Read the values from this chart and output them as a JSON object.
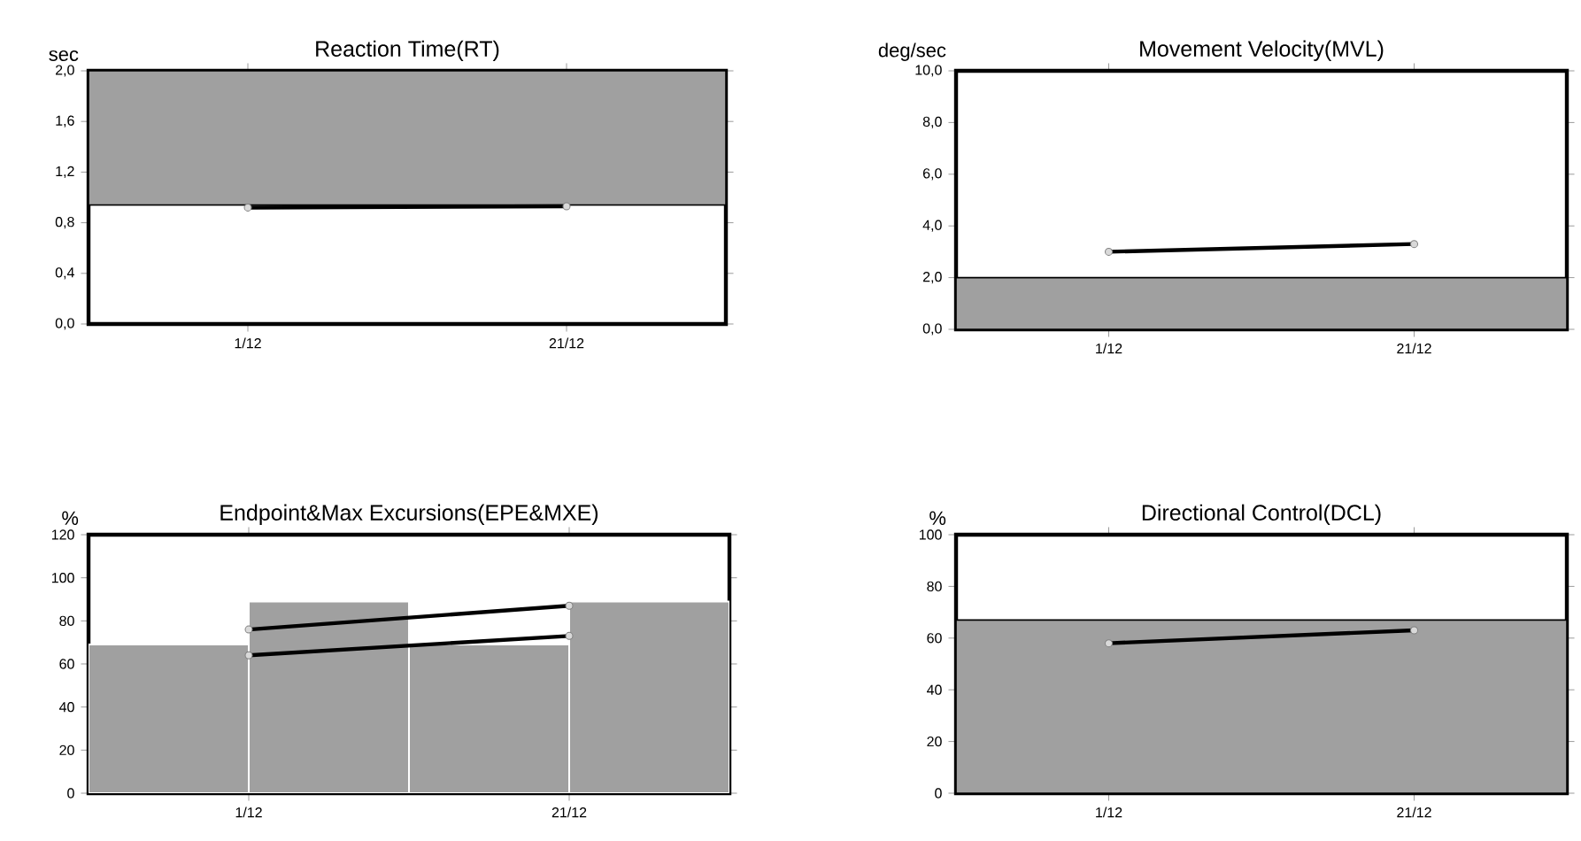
{
  "chart_data": [
    {
      "type": "line",
      "title": "Reaction Time(RT)",
      "ylabel": "sec",
      "categories": [
        "1/12",
        "21/12"
      ],
      "ylim": [
        0,
        2
      ],
      "yticks": [
        {
          "value": 0,
          "label": "0,0"
        },
        {
          "value": 0.4,
          "label": "0,4"
        },
        {
          "value": 0.8,
          "label": "0,8"
        },
        {
          "value": 1.2,
          "label": "1,2"
        },
        {
          "value": 1.6,
          "label": "1,6"
        },
        {
          "value": 2,
          "label": "2,0"
        }
      ],
      "marker": "circle",
      "line_style": "solid",
      "bands": [
        {
          "axis": "y",
          "from": 0.94,
          "to": 2.0,
          "color": "#a0a0a0"
        }
      ],
      "series": [
        {
          "values": [
            0.92,
            0.93
          ],
          "color": "#000000"
        }
      ]
    },
    {
      "type": "line",
      "title": "Movement Velocity(MVL)",
      "ylabel": "deg/sec",
      "categories": [
        "1/12",
        "21/12"
      ],
      "ylim": [
        0,
        10
      ],
      "yticks": [
        {
          "value": 0,
          "label": "0,0"
        },
        {
          "value": 2,
          "label": "2,0"
        },
        {
          "value": 4,
          "label": "4,0"
        },
        {
          "value": 6,
          "label": "6,0"
        },
        {
          "value": 8,
          "label": "8,0"
        },
        {
          "value": 10,
          "label": "10,0"
        }
      ],
      "marker": "circle",
      "line_style": "solid",
      "bands": [
        {
          "axis": "y",
          "from": 0,
          "to": 2.0,
          "color": "#a0a0a0"
        }
      ],
      "series": [
        {
          "values": [
            3.0,
            3.3
          ],
          "color": "#000000"
        }
      ]
    },
    {
      "type": "bar",
      "title": "Endpoint&Max Excursions(EPE&MXE)",
      "ylabel": "%",
      "categories": [
        "1/12",
        "21/12"
      ],
      "ylim": [
        0,
        120
      ],
      "yticks": [
        0,
        20,
        40,
        60,
        80,
        100,
        120
      ],
      "marker": "circle",
      "line_style": "solid",
      "series": [
        {
          "values": [
            69,
            69
          ],
          "color": "#a0a0a0"
        },
        {
          "values": [
            89,
            89
          ],
          "color": "#a0a0a0"
        },
        {
          "type": "line",
          "values": [
            64,
            73
          ],
          "color": "#000000"
        },
        {
          "type": "line",
          "values": [
            76,
            87
          ],
          "color": "#000000"
        }
      ]
    },
    {
      "type": "line",
      "title": "Directional Control(DCL)",
      "ylabel": "%",
      "categories": [
        "1/12",
        "21/12"
      ],
      "ylim": [
        0,
        100
      ],
      "yticks": [
        0,
        20,
        40,
        60,
        80,
        100
      ],
      "marker": "circle",
      "line_style": "solid",
      "bands": [
        {
          "axis": "y",
          "from": 0,
          "to": 67,
          "color": "#a0a0a0"
        }
      ],
      "series": [
        {
          "values": [
            58,
            63
          ],
          "color": "#000000"
        }
      ]
    }
  ]
}
